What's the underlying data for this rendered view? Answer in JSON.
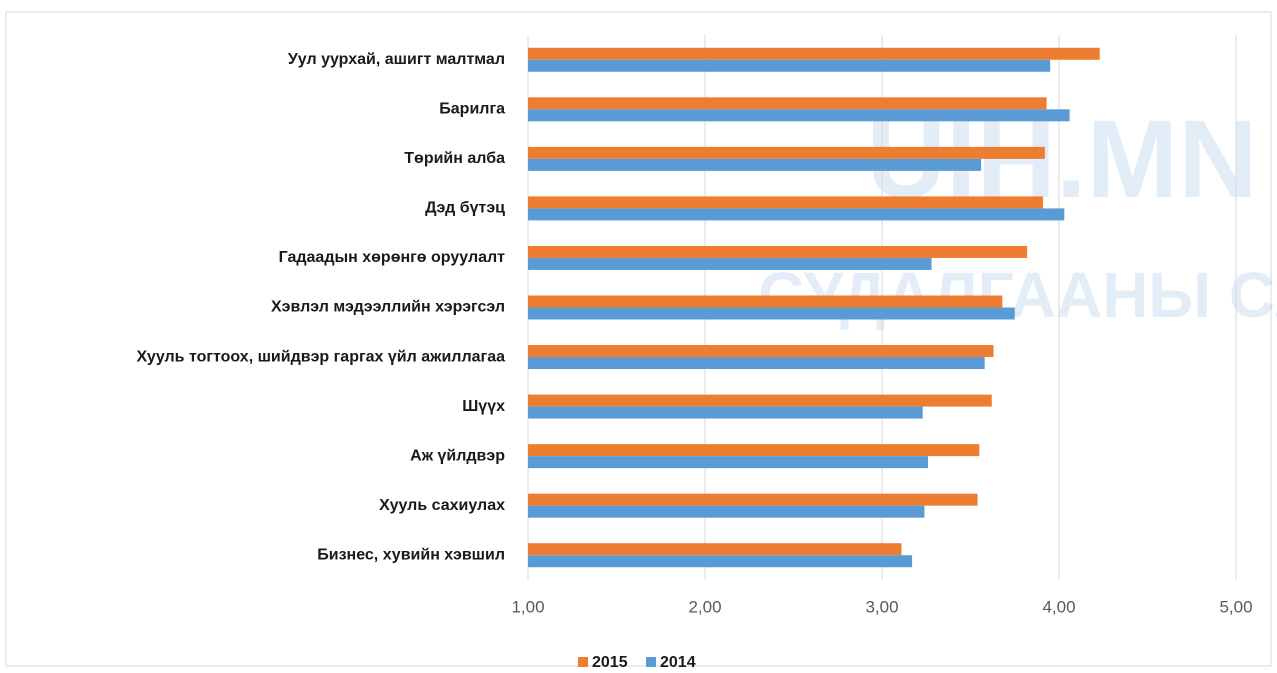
{
  "chart_data": {
    "type": "barh",
    "watermark": [
      "UIH.MN",
      "СУДАЛГААНЫ САН"
    ],
    "categories": [
      "Уул уурхай, ашигт малтмал",
      "Барилга",
      "Төрийн алба",
      "Дэд бүтэц",
      "Гадаадын хөрөнгө оруулалт",
      "Хэвлэл мэдээллийн хэрэгсэл",
      "Хууль тогтоох, шийдвэр гаргах үйл ажиллагаа",
      "Шүүх",
      "Аж үйлдвэр",
      "Хууль сахиулах",
      "Бизнес, хувийн хэвшил"
    ],
    "series": [
      {
        "name": "2015",
        "color": "#ed7d31",
        "values": [
          4.23,
          3.93,
          3.92,
          3.91,
          3.82,
          3.68,
          3.63,
          3.62,
          3.55,
          3.54,
          3.11
        ]
      },
      {
        "name": "2014",
        "color": "#5b9bd5",
        "values": [
          3.95,
          4.06,
          3.56,
          4.03,
          3.28,
          3.75,
          3.58,
          3.23,
          3.26,
          3.24,
          3.17
        ]
      }
    ],
    "xlim": [
      1,
      5
    ],
    "xticks": [
      {
        "value": 1,
        "label": "1,00"
      },
      {
        "value": 2,
        "label": "2,00"
      },
      {
        "value": 3,
        "label": "3,00"
      },
      {
        "value": 4,
        "label": "4,00"
      },
      {
        "value": 5,
        "label": "5,00"
      }
    ],
    "grid": true,
    "legend": "bottom"
  }
}
